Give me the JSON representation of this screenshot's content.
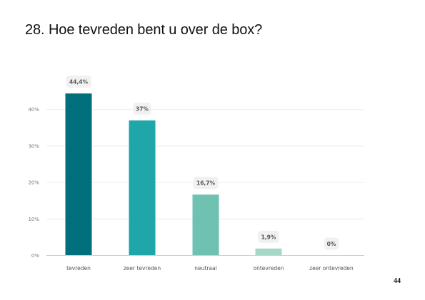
{
  "page": {
    "title": "28. Hoe tevreden bent u over de box?",
    "page_number": "44"
  },
  "chart_data": {
    "type": "bar",
    "categories": [
      "tevreden",
      "zeer tevreden",
      "neutraal",
      "ontevreden",
      "zeer ontevreden"
    ],
    "values": [
      44.4,
      37,
      16.7,
      1.9,
      0
    ],
    "value_labels": [
      "44,4%",
      "37%",
      "16,7%",
      "1,9%",
      "0%"
    ],
    "bar_colors": [
      "#02707c",
      "#1ea6a8",
      "#6fc2b2",
      "#a5d9c6",
      "#cfece2"
    ],
    "y_ticks": [
      0,
      10,
      20,
      30,
      40
    ],
    "y_tick_labels": [
      "0%",
      "10%",
      "20%",
      "30%",
      "40%"
    ],
    "ylim": [
      0,
      50
    ],
    "grid": true,
    "legend": "none",
    "title": "",
    "xlabel": "",
    "ylabel": ""
  }
}
